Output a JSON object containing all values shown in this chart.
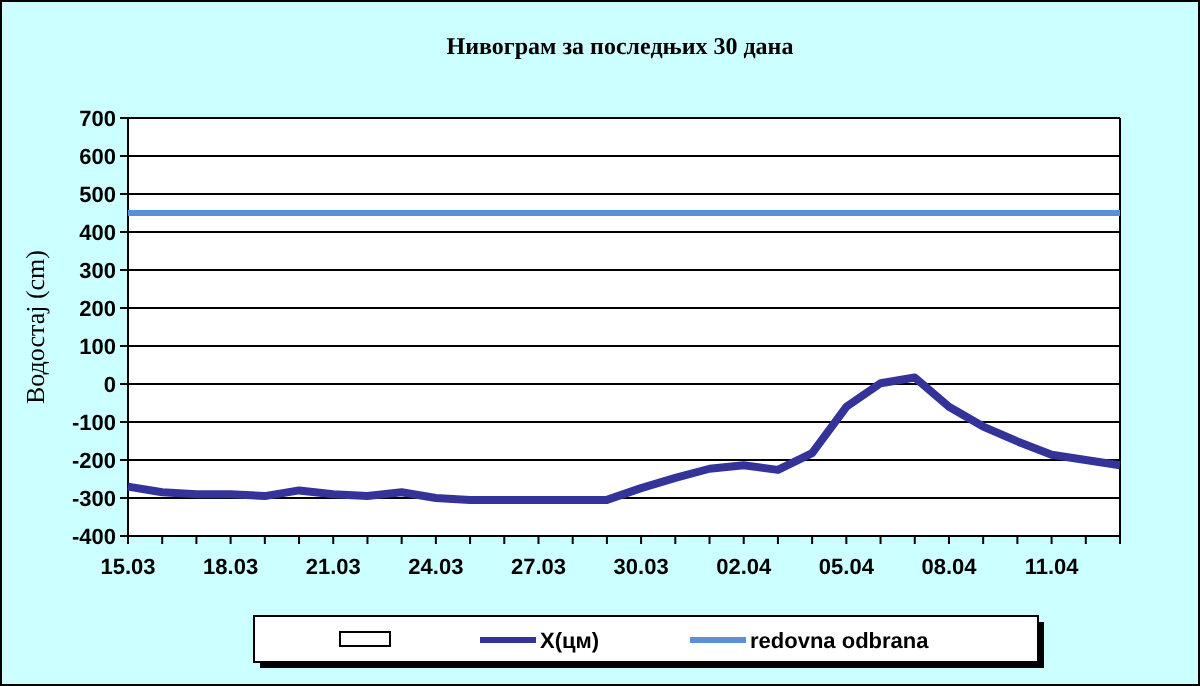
{
  "chart_data": {
    "type": "line",
    "title": "Нивограм за последњих 30 дана",
    "ylabel": "Водостај (cm)",
    "categories": [
      "15.03",
      null,
      null,
      "18.03",
      null,
      null,
      "21.03",
      null,
      null,
      "24.03",
      null,
      null,
      "27.03",
      null,
      null,
      "30.03",
      null,
      null,
      "02.04",
      null,
      null,
      "05.04",
      null,
      null,
      "08.04",
      null,
      null,
      "11.04",
      null,
      null
    ],
    "series": [
      {
        "name": "X(цм)",
        "color": "#333399",
        "values": [
          -270,
          -285,
          -290,
          -290,
          -295,
          -280,
          -290,
          -295,
          -285,
          -300,
          -305,
          -305,
          -305,
          -305,
          -305,
          -274,
          -247,
          -223,
          -214,
          -226,
          -182,
          -60,
          2,
          17,
          -60,
          -112,
          -151,
          -186,
          -200,
          -214
        ]
      }
    ],
    "ref_lines": [
      {
        "axis": "y",
        "value": 450,
        "label": "redovna odbrana",
        "color": "#5b8fd6"
      }
    ],
    "ylim": [
      -400,
      700
    ],
    "yticks": [
      -400,
      -300,
      -200,
      -100,
      0,
      100,
      200,
      300,
      400,
      500,
      600,
      700
    ],
    "grid": "y",
    "legend": "bottom",
    "marker": "none",
    "line_style": "solid"
  }
}
